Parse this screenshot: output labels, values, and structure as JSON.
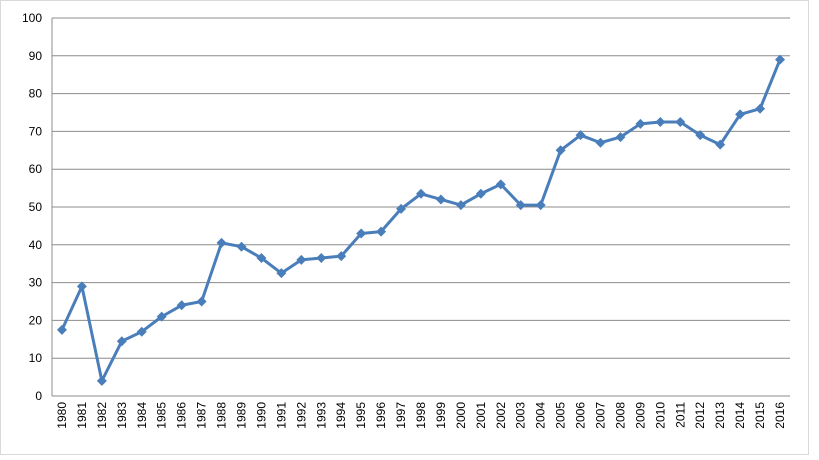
{
  "chart_data": {
    "type": "line",
    "categories": [
      "1980",
      "1981",
      "1982",
      "1983",
      "1984",
      "1985",
      "1986",
      "1987",
      "1988",
      "1989",
      "1990",
      "1991",
      "1992",
      "1993",
      "1994",
      "1995",
      "1996",
      "1997",
      "1998",
      "1999",
      "2000",
      "2001",
      "2002",
      "2003",
      "2004",
      "2005",
      "2006",
      "2007",
      "2008",
      "2009",
      "2010",
      "2011",
      "2012",
      "2013",
      "2014",
      "2015",
      "2016"
    ],
    "values": [
      17.5,
      29,
      4,
      14.5,
      17,
      21,
      24,
      25,
      40.5,
      39.5,
      36.5,
      32.5,
      36,
      36.5,
      37,
      43,
      43.5,
      49.5,
      53.5,
      52,
      50.5,
      53.5,
      56,
      50.5,
      50.5,
      65,
      69,
      67,
      68.5,
      72,
      72.5,
      72.5,
      69,
      66.5,
      74.5,
      76,
      89
    ],
    "color": "#4a7ebb",
    "ylim": [
      0,
      100
    ],
    "yticks": [
      0,
      10,
      20,
      30,
      40,
      50,
      60,
      70,
      80,
      90,
      100
    ],
    "grid": true
  }
}
